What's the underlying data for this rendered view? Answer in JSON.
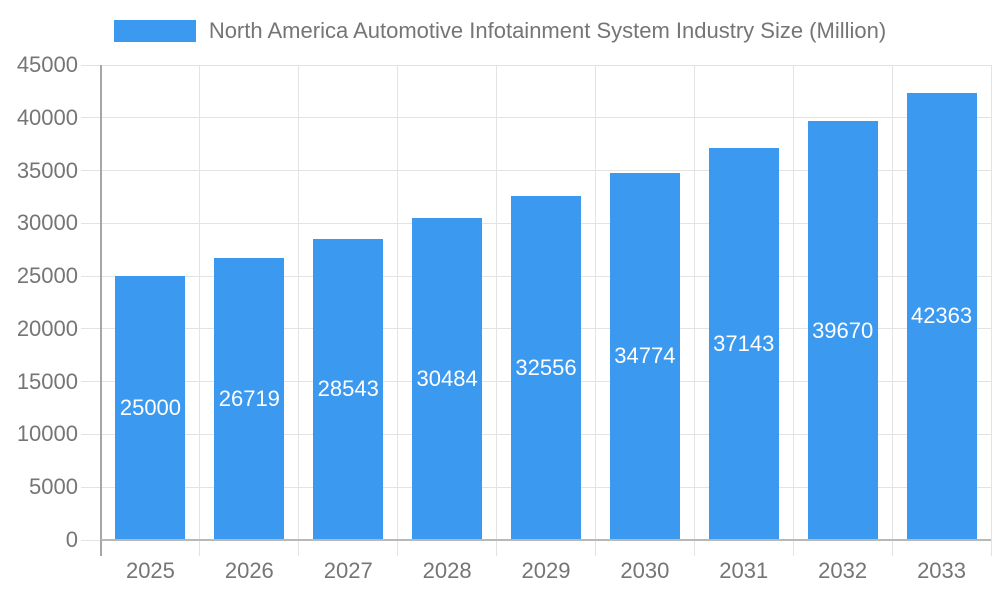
{
  "legend": {
    "label": "North America Automotive Infotainment System Industry Size (Million)"
  },
  "chart_data": {
    "type": "bar",
    "title": "",
    "categories": [
      "2025",
      "2026",
      "2027",
      "2028",
      "2029",
      "2030",
      "2031",
      "2032",
      "2033"
    ],
    "series": [
      {
        "name": "North America Automotive Infotainment System Industry Size (Million)",
        "values": [
          25000,
          26719,
          28543,
          30484,
          32556,
          34774,
          37143,
          39670,
          42363
        ]
      }
    ],
    "value_labels": [
      "25000",
      "26719",
      "28543",
      "30484",
      "32556",
      "34774",
      "37143",
      "39670",
      "42363"
    ],
    "xlabel": "",
    "ylabel": "",
    "ylim": [
      0,
      45000
    ],
    "ytick_step": 5000,
    "ytick_labels": [
      "0",
      "5000",
      "10000",
      "15000",
      "20000",
      "25000",
      "30000",
      "35000",
      "40000",
      "45000"
    ],
    "grid": true,
    "legend_position": "top",
    "colors": {
      "bar_fill": "#3B99F0",
      "bar_value_text": "#ffffff",
      "axis_text": "#757575",
      "legend_text": "#757575",
      "gridline": "#e3e3e3",
      "y_axis_line": "#a6a6a6",
      "x_axis_line": "#b8b8b8",
      "background": "#ffffff"
    }
  }
}
